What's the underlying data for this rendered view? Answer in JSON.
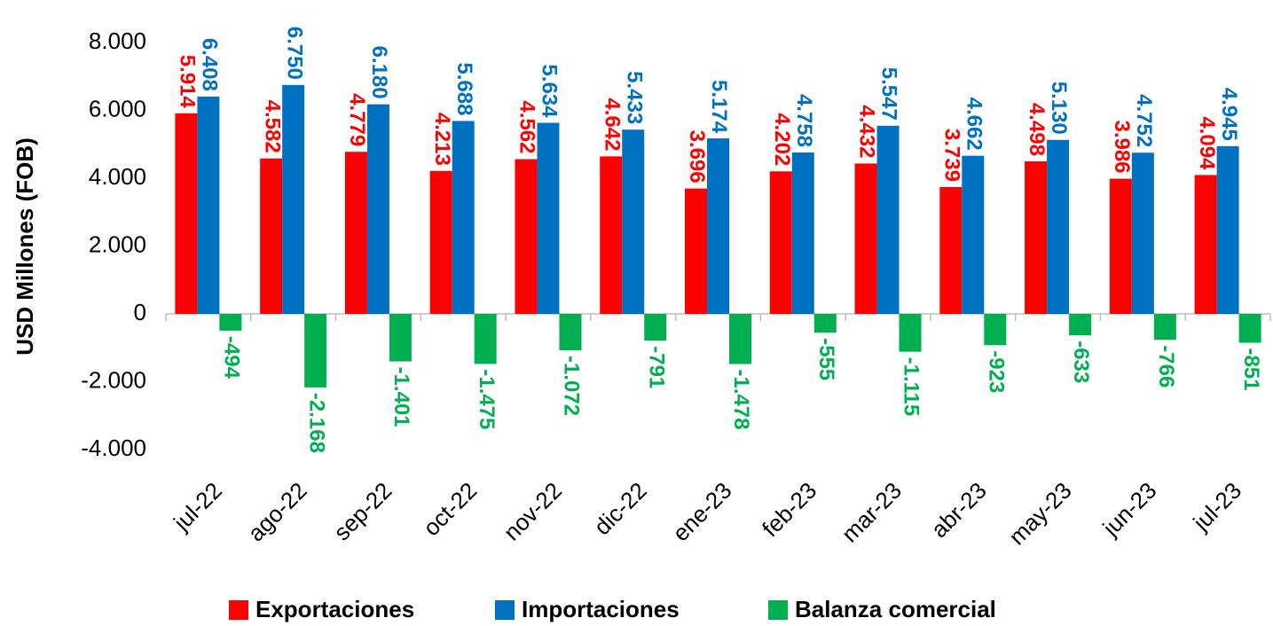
{
  "chart_data": {
    "type": "bar",
    "y_label": "USD Millones (FOB)",
    "categories": [
      "jul-22",
      "ago-22",
      "sep-22",
      "oct-22",
      "nov-22",
      "dic-22",
      "ene-23",
      "feb-23",
      "mar-23",
      "abr-23",
      "may-23",
      "jun-23",
      "jul-23"
    ],
    "series": [
      {
        "name": "Exportaciones",
        "color": "#ff0000",
        "values": [
          5914,
          4582,
          4779,
          4213,
          4562,
          4642,
          3696,
          4202,
          4432,
          3739,
          4498,
          3986,
          4094
        ],
        "value_labels": [
          "5.914",
          "4.582",
          "4.779",
          "4.213",
          "4.562",
          "4.642",
          "3.696",
          "4.202",
          "4.432",
          "3.739",
          "4.498",
          "3.986",
          "4.094"
        ]
      },
      {
        "name": "Importaciones",
        "color": "#0070c0",
        "values": [
          6408,
          6750,
          6180,
          5688,
          5634,
          5433,
          5174,
          4758,
          5547,
          4662,
          5130,
          4752,
          4945
        ],
        "value_labels": [
          "6.408",
          "6.750",
          "6.180",
          "5.688",
          "5.634",
          "5.433",
          "5.174",
          "4.758",
          "5.547",
          "4.662",
          "5.130",
          "4.752",
          "4.945"
        ]
      },
      {
        "name": "Balanza comercial",
        "color": "#00b050",
        "values": [
          -494,
          -2168,
          -1401,
          -1475,
          -1072,
          -791,
          -1478,
          -555,
          -1115,
          -923,
          -633,
          -766,
          -851
        ],
        "value_labels": [
          "-494",
          "-2.168",
          "-1.401",
          "-1.475",
          "-1.072",
          "-791",
          "-1.478",
          "-555",
          "-1.115",
          "-923",
          "-633",
          "-766",
          "-851"
        ]
      }
    ],
    "ylim": [
      -4000,
      8000
    ],
    "yticks": [
      {
        "value": -4000,
        "label": "-4.000"
      },
      {
        "value": -2000,
        "label": "-2.000"
      },
      0,
      {
        "value": 2000,
        "label": "2.000"
      },
      {
        "value": 4000,
        "label": "4.000"
      },
      {
        "value": 6000,
        "label": "6.000"
      },
      {
        "value": 8000,
        "label": "8.000"
      }
    ],
    "grid": false,
    "legend": "bottom"
  }
}
